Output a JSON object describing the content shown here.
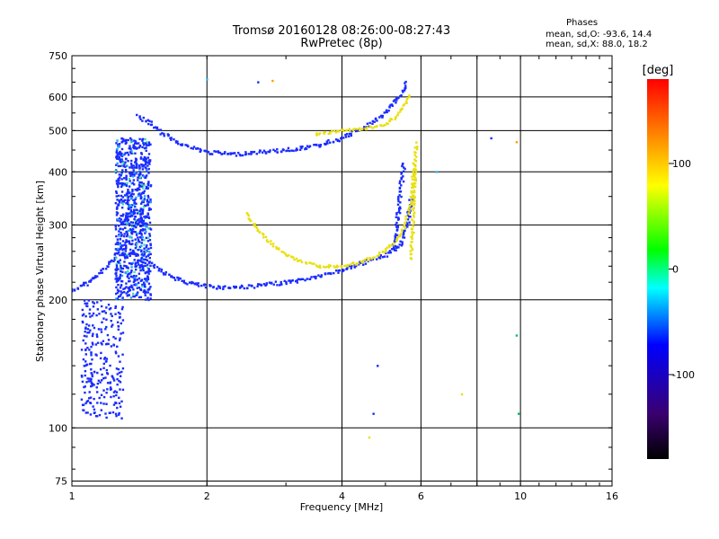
{
  "header": {
    "title": "Tromsø 20160128 08:26:00-08:27:43",
    "subtitle": "RwPretec (8p)"
  },
  "phases": {
    "heading": "Phases",
    "line_o": "mean, sd,O: -93.6, 14.4",
    "line_x": "mean, sd,X: 88.0, 18.2"
  },
  "chart_data": {
    "type": "scatter",
    "title": "Tromsø 20160128 08:26:00-08:27:43",
    "subtitle": "RwPretec (8p)",
    "xlabel": "Frequency [MHz]",
    "ylabel": "Stationary phase Virtual Height [km]",
    "x_scale": "log",
    "y_scale": "log",
    "xlim": [
      1,
      16
    ],
    "ylim": [
      73,
      750
    ],
    "x_ticks": [
      1,
      2,
      4,
      6,
      10,
      16
    ],
    "x_tick_labels": [
      "1",
      "2",
      "4",
      "6",
      "10",
      "16"
    ],
    "x_grid": [
      2,
      4,
      6,
      8,
      10
    ],
    "y_ticks": [
      75,
      100,
      200,
      300,
      400,
      500,
      600,
      750
    ],
    "y_tick_labels": [
      "75",
      "100",
      "200",
      "300",
      "400",
      "500",
      "600",
      "750"
    ],
    "grid": true,
    "colorbar": {
      "label": "[deg]",
      "range": [
        -180,
        180
      ],
      "ticks": [
        100,
        0,
        -100
      ],
      "tick_labels": [
        "100",
        "0",
        "-100"
      ],
      "colors": [
        "#000000",
        "#3a0070",
        "#0000ff",
        "#00ffff",
        "#00ff00",
        "#ffff00",
        "#ff0000"
      ]
    },
    "series": [
      {
        "mode": "O",
        "color": "#1a2cff",
        "traces": [
          {
            "x": [
              1.0,
              1.05,
              1.1,
              1.15,
              1.2,
              1.25,
              1.3,
              1.35,
              1.4,
              1.45
            ],
            "y": [
              210,
              215,
              222,
              230,
              240,
              255,
              270,
              285,
              300,
              320
            ]
          },
          {
            "x": [
              1.5,
              1.6,
              1.7,
              1.8,
              2.0,
              2.2,
              2.5,
              2.8,
              3.2,
              3.6,
              4.0,
              4.5,
              5.0,
              5.4,
              5.6,
              5.7
            ],
            "y": [
              245,
              232,
              225,
              220,
              215,
              214,
              215,
              218,
              222,
              228,
              235,
              245,
              255,
              270,
              300,
              350
            ]
          },
          {
            "x": [
              1.4,
              1.5,
              1.6,
              1.8,
              2.0,
              2.3,
              2.6,
              3.0,
              3.5,
              4.0,
              4.5,
              5.0,
              5.3,
              5.5,
              5.6
            ],
            "y": [
              540,
              520,
              490,
              460,
              445,
              440,
              445,
              450,
              460,
              480,
              510,
              550,
              590,
              630,
              650
            ]
          },
          {
            "x": [
              5.2,
              5.3,
              5.4,
              5.5
            ],
            "y": [
              260,
              300,
              360,
              420
            ]
          }
        ],
        "band": {
          "x": [
            1.25,
            1.5
          ],
          "y": [
            200,
            480
          ]
        },
        "lower_band": {
          "x": [
            1.05,
            1.3
          ],
          "y": [
            105,
            200
          ]
        }
      },
      {
        "mode": "X",
        "color": "#e8e010",
        "traces": [
          {
            "x": [
              2.45,
              2.6,
              2.8,
              3.0,
              3.3,
              3.6,
              4.0,
              4.4,
              4.8,
              5.2,
              5.5,
              5.7,
              5.8
            ],
            "y": [
              320,
              290,
              270,
              255,
              245,
              240,
              240,
              245,
              255,
              270,
              295,
              340,
              420
            ]
          },
          {
            "x": [
              3.5,
              4.0,
              4.5,
              5.0,
              5.3,
              5.5,
              5.7
            ],
            "y": [
              490,
              500,
              505,
              520,
              540,
              570,
              610
            ]
          },
          {
            "x": [
              5.7,
              5.75,
              5.8,
              5.85
            ],
            "y": [
              250,
              300,
              380,
              470
            ]
          }
        ]
      }
    ],
    "scattered_points": [
      {
        "x": 2.6,
        "y": 650
      },
      {
        "x": 2.8,
        "y": 655
      },
      {
        "x": 2.0,
        "y": 660
      },
      {
        "x": 7.4,
        "y": 120
      },
      {
        "x": 4.8,
        "y": 140
      },
      {
        "x": 9.8,
        "y": 165
      },
      {
        "x": 8.6,
        "y": 480
      },
      {
        "x": 9.8,
        "y": 470
      },
      {
        "x": 6.5,
        "y": 400
      },
      {
        "x": 4.6,
        "y": 95
      },
      {
        "x": 4.7,
        "y": 108
      },
      {
        "x": 9.9,
        "y": 108
      }
    ]
  }
}
